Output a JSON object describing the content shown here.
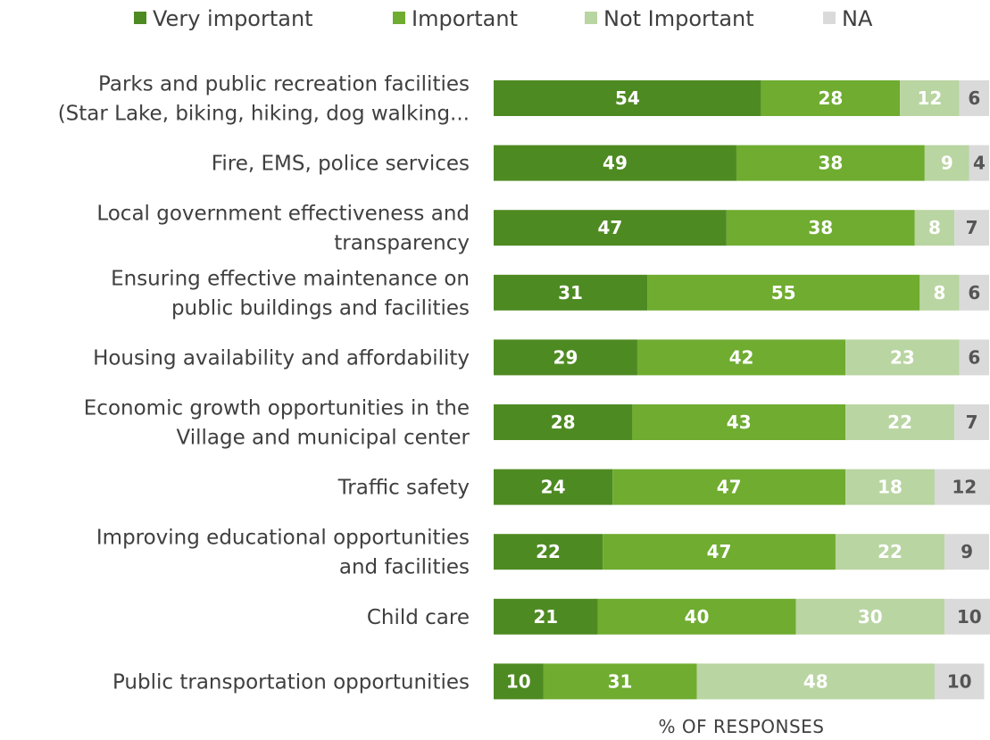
{
  "chart_data": {
    "type": "bar",
    "orientation": "horizontal",
    "stacked": true,
    "xlabel": "% OF RESPONSES",
    "xlim": [
      0,
      100
    ],
    "grid": false,
    "legend_position": "top",
    "categories": [
      [
        "Parks and public recreation facilities",
        "(Star Lake, biking, hiking, dog walking..."
      ],
      [
        "Fire, EMS, police services"
      ],
      [
        "Local government effectiveness and",
        "transparency"
      ],
      [
        "Ensuring effective maintenance on",
        "public buildings and facilities"
      ],
      [
        "Housing availability and affordability"
      ],
      [
        "Economic growth opportunities in the",
        "Village and municipal center"
      ],
      [
        "Traffic safety"
      ],
      [
        "Improving educational opportunities",
        "and facilities"
      ],
      [
        "Child care"
      ],
      [
        "Public transportation opportunities"
      ]
    ],
    "series": [
      {
        "name": "Very important",
        "color": "#4e8a22",
        "label_color": "#ffffff",
        "values": [
          54,
          49,
          47,
          31,
          29,
          28,
          24,
          22,
          21,
          10
        ]
      },
      {
        "name": "Important",
        "color": "#6fac30",
        "label_color": "#ffffff",
        "values": [
          28,
          38,
          38,
          55,
          42,
          43,
          47,
          47,
          40,
          31
        ]
      },
      {
        "name": "Not Important",
        "color": "#b9d5a2",
        "label_color": "#ffffff",
        "values": [
          12,
          9,
          8,
          8,
          23,
          22,
          18,
          22,
          30,
          48
        ]
      },
      {
        "name": "NA",
        "color": "#dadada",
        "label_color": "#555555",
        "values": [
          6,
          4,
          7,
          6,
          6,
          7,
          12,
          9,
          10,
          10
        ]
      }
    ]
  }
}
